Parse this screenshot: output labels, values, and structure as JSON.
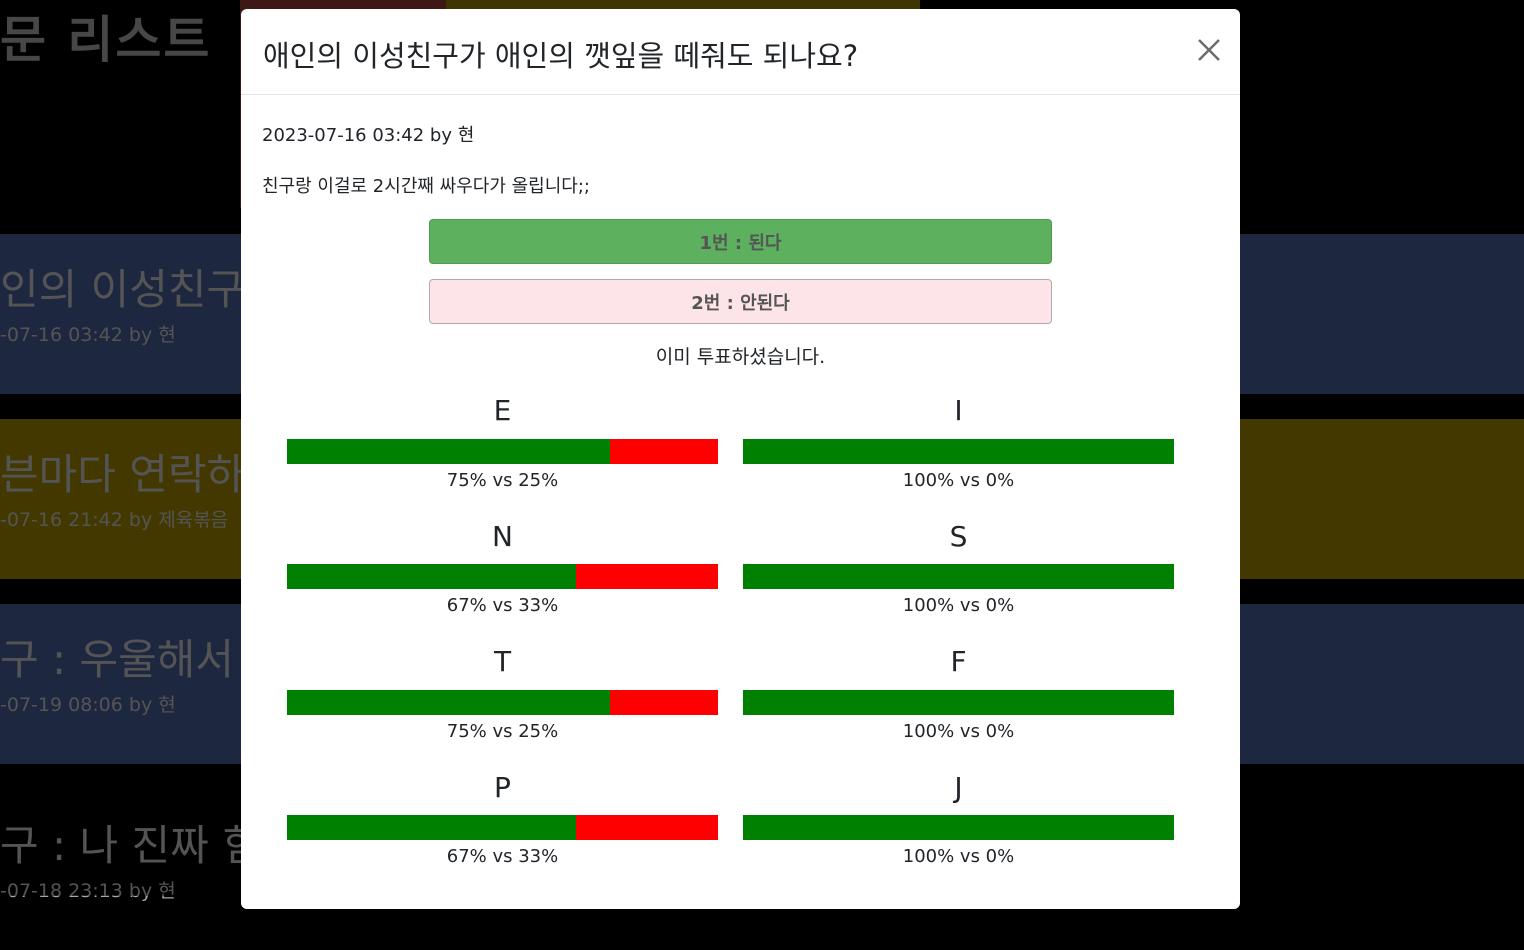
{
  "background": {
    "page_title": "문 리스트",
    "posts": [
      {
        "title": "인의 이성친구",
        "meta": "-07-16 03:42 by 현",
        "color": "#3a5181"
      },
      {
        "title": "븐마다 연락하는",
        "meta": "-07-16 21:42 by 제육볶음",
        "color": "#867200"
      },
      {
        "title": "구 : 우울해서",
        "meta": "-07-19 08:06 by 현",
        "color": "#3a5181"
      },
      {
        "title": "구 : 나 진짜 힘",
        "meta": "-07-18 23:13 by 현",
        "color": "#000000"
      }
    ]
  },
  "modal": {
    "title": "애인의 이성친구가 애인의 깻잎을 떼줘도 되나요?",
    "close_icon": "close-icon",
    "meta": "2023-07-16 03:42 by 현",
    "body": "친구랑 이걸로 2시간째 싸우다가 올립니다;;",
    "options": [
      {
        "label": "1번 : 된다",
        "color": "#5cb05e"
      },
      {
        "label": "2번 : 안된다",
        "color": "#fde4e8"
      }
    ],
    "voted_message": "이미 투표하셨습니다.",
    "stats": [
      {
        "letter": "E",
        "percent": 75,
        "text": "75% vs 25%"
      },
      {
        "letter": "I",
        "percent": 100,
        "text": "100% vs 0%"
      },
      {
        "letter": "N",
        "percent": 67,
        "text": "67% vs 33%"
      },
      {
        "letter": "S",
        "percent": 100,
        "text": "100% vs 0%"
      },
      {
        "letter": "T",
        "percent": 75,
        "text": "75% vs 25%"
      },
      {
        "letter": "F",
        "percent": 100,
        "text": "100% vs 0%"
      },
      {
        "letter": "P",
        "percent": 67,
        "text": "67% vs 33%"
      },
      {
        "letter": "J",
        "percent": 100,
        "text": "100% vs 0%"
      }
    ],
    "bar_colors": {
      "fill": "#008000",
      "rest": "#ff0000"
    }
  }
}
